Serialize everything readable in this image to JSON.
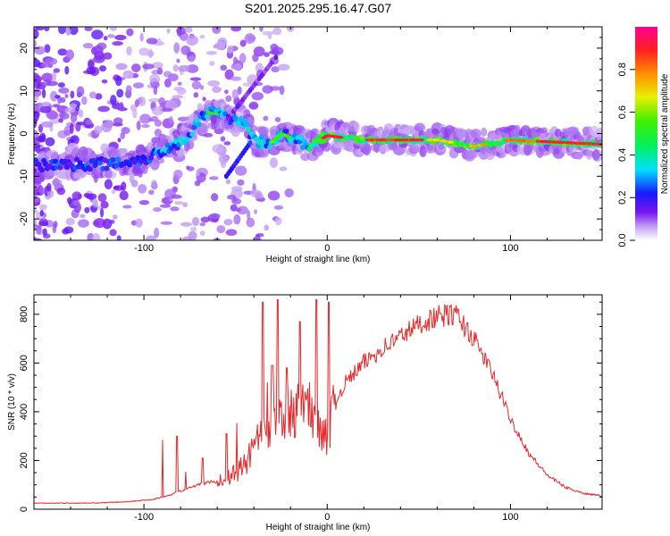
{
  "title": "S201.2025.295.16.47.G07",
  "chart_data": [
    {
      "type": "heatmap",
      "xlabel": "Height of straight line (km)",
      "ylabel": "Frequency (Hz)",
      "xlim": [
        -160,
        150
      ],
      "ylim": [
        -25,
        25
      ],
      "xticks": [
        -100,
        0,
        100
      ],
      "yticks": [
        -20,
        -10,
        0,
        10,
        20
      ],
      "colorbar": {
        "label": "Normalized spectral amplitude",
        "range": [
          0,
          1
        ],
        "ticks": [
          "0.0",
          "0.2",
          "0.4",
          "0.6",
          "0.8"
        ],
        "tick_values": [
          0,
          0.2,
          0.4,
          0.6,
          0.8
        ]
      },
      "ridge": {
        "description_points_km_hz": [
          [
            -160,
            -7.5
          ],
          [
            -120,
            -7
          ],
          [
            -100,
            -6
          ],
          [
            -80,
            -2
          ],
          [
            -65,
            5
          ],
          [
            -55,
            4
          ],
          [
            -45,
            3
          ],
          [
            -40,
            -2
          ],
          [
            -30,
            -2
          ],
          [
            -25,
            0
          ],
          [
            -10,
            -3
          ],
          [
            0,
            -0.5
          ],
          [
            20,
            -1.5
          ],
          [
            60,
            -1.5
          ],
          [
            80,
            -3
          ],
          [
            100,
            -1.5
          ],
          [
            150,
            -2.5
          ]
        ],
        "peak_amplitude": 1.0
      }
    },
    {
      "type": "line",
      "xlabel": "Height of straight line (km)",
      "ylabel": "SNR (10 * v/v)",
      "xlim": [
        -160,
        150
      ],
      "ylim": [
        0,
        880
      ],
      "xticks": [
        -100,
        0,
        100
      ],
      "yticks": [
        0,
        200,
        400,
        600,
        800
      ],
      "series": [
        {
          "name": "SNR",
          "color": "#e8282a",
          "envelope_x": [
            -160,
            -130,
            -110,
            -95,
            -85,
            -75,
            -65,
            -55,
            -45,
            -38,
            -30,
            -25,
            -18,
            -10,
            -5,
            0,
            5,
            10,
            20,
            30,
            40,
            50,
            60,
            70,
            80,
            90,
            100,
            110,
            120,
            130,
            140,
            150
          ],
          "envelope_y": [
            25,
            25,
            30,
            40,
            60,
            90,
            110,
            120,
            180,
            280,
            330,
            360,
            400,
            430,
            350,
            300,
            450,
            520,
            600,
            660,
            710,
            760,
            790,
            800,
            700,
            560,
            370,
            230,
            140,
            90,
            65,
            55
          ],
          "spikes": [
            [
              -82,
              300
            ],
            [
              -68,
              210
            ],
            [
              -55,
              310
            ],
            [
              -35,
              850
            ],
            [
              -30,
              590
            ],
            [
              -27,
              860
            ],
            [
              -22,
              580
            ],
            [
              -15,
              770
            ],
            [
              -6,
              860
            ],
            [
              1,
              850
            ]
          ]
        }
      ]
    }
  ]
}
